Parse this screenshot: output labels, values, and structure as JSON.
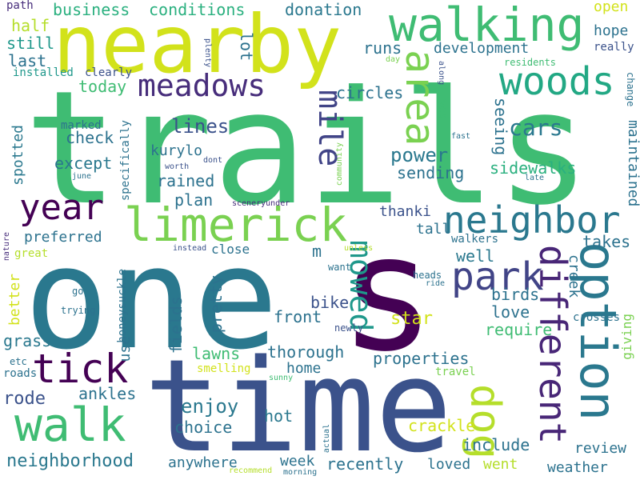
{
  "words": {
    "trails": "trails",
    "one": "one",
    "s": "s",
    "time": "time",
    "nearby": "nearby",
    "walking": "walking",
    "limerick": "limerick",
    "meadows": "meadows",
    "woods": "woods",
    "neighbor": "neighbor",
    "year": "year",
    "walk": "walk",
    "tick": "tick",
    "park": "park",
    "dog": "dog",
    "option": "option",
    "different": "different",
    "area": "area",
    "mile": "mile",
    "mowed": "mowed",
    "business": "business",
    "conditions": "conditions",
    "donation": "donation",
    "open": "open",
    "half": "half",
    "still": "still",
    "last": "last",
    "today": "today",
    "installed": "installed",
    "clearly": "clearly",
    "path": "path",
    "plenty": "plenty",
    "lot": "lot",
    "runs": "runs",
    "development": "development",
    "hope": "hope",
    "really": "really",
    "residents": "residents",
    "day": "day",
    "along": "along",
    "change": "change",
    "circles": "circles",
    "yes": "yes",
    "fast": "fast",
    "seeing": "seeing",
    "cars": "cars",
    "maintained": "maintained",
    "lines": "lines",
    "check": "check",
    "kurylo": "kurylo",
    "except": "except",
    "rained": "rained",
    "plan": "plan",
    "power": "power",
    "sending": "sending",
    "sidewalks": "sidewalks",
    "community": "community",
    "late": "late",
    "marked": "marked",
    "spotted": "spotted",
    "june": "june",
    "specifically": "specifically",
    "worth": "worth",
    "dont": "dont",
    "sceneryunder": "sceneryunder",
    "preferred": "preferred",
    "thanki": "thanki",
    "tall": "tall",
    "walkers": "walkers",
    "creek": "creek",
    "takes": "takes",
    "nature": "nature",
    "great": "great",
    "instead": "instead",
    "close": "close",
    "m": "m",
    "unless": "unless",
    "well": "well",
    "want": "want",
    "heads": "heads",
    "ride": "ride",
    "better": "better",
    "go": "go",
    "trying": "trying",
    "honeysuckle": "honeysuckle",
    "pretty": "pretty",
    "fields": "fields",
    "bike": "bike",
    "front": "front",
    "birds": "birds",
    "love": "love",
    "star": "star",
    "require": "require",
    "newly": "newly",
    "crosses": "crosses",
    "giving": "giving",
    "grass": "grass",
    "etc": "etc",
    "roads": "roads",
    "use": "use",
    "lawns": "lawns",
    "thorough": "thorough",
    "home": "home",
    "properties": "properties",
    "smelling": "smelling",
    "sunny": "sunny",
    "travel": "travel",
    "rode": "rode",
    "ankles": "ankles",
    "enjoy": "enjoy",
    "hot": "hot",
    "choice": "choice",
    "crackle": "crackle",
    "include": "include",
    "review": "review",
    "actual": "actual",
    "neighborhood": "neighborhood",
    "anywhere": "anywhere",
    "week": "week",
    "recently": "recently",
    "loved": "loved",
    "went": "went",
    "weather": "weather",
    "recommend": "recommend",
    "morning": "morning"
  }
}
